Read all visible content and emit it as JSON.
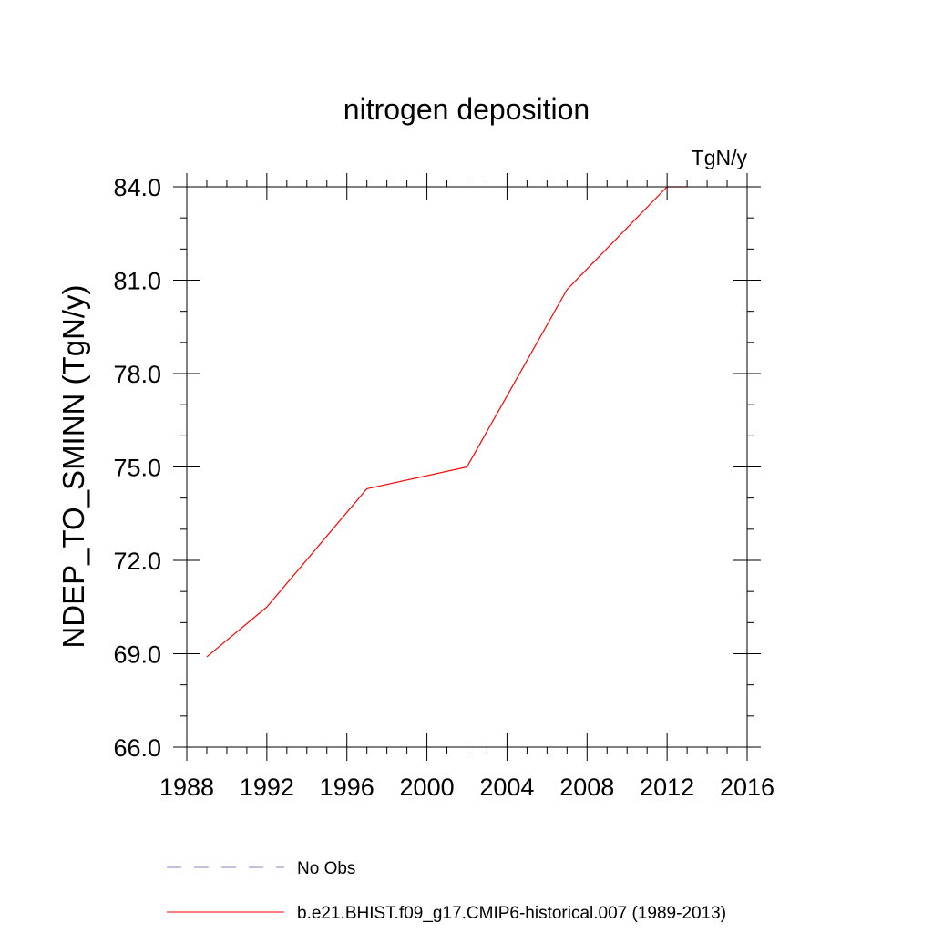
{
  "chart_data": {
    "type": "line",
    "title": "nitrogen deposition",
    "units": "TgN/y",
    "ylabel": "NDEP_TO_SMINN  (TgN/y)",
    "xlabel": "",
    "xlim": [
      1988,
      2016
    ],
    "ylim": [
      66.0,
      84.0
    ],
    "x_ticks": [
      1988,
      1992,
      1996,
      2000,
      2004,
      2008,
      2012,
      2016
    ],
    "x_tick_labels": [
      "1988",
      "1992",
      "1996",
      "2000",
      "2004",
      "2008",
      "2012",
      "2016"
    ],
    "y_ticks": [
      66.0,
      69.0,
      72.0,
      75.0,
      78.0,
      81.0,
      84.0
    ],
    "y_tick_labels": [
      "66.0",
      "69.0",
      "72.0",
      "75.0",
      "78.0",
      "81.0",
      "84.0"
    ],
    "x_minor_step": 1,
    "y_minor_step": 1,
    "grid": false,
    "legend_position": "bottom",
    "series": [
      {
        "name": "b.e21.BHIST.f09_g17.CMIP6-historical.007 (1989-2013)",
        "color": "#ff0000",
        "dash": "solid",
        "x": [
          1989,
          1992,
          1997,
          2002,
          2007,
          2012,
          2013
        ],
        "y": [
          68.9,
          70.5,
          74.3,
          75.0,
          80.7,
          84.0,
          84.0
        ]
      }
    ],
    "legend": [
      {
        "label": "No Obs",
        "color": "#8a80c8",
        "dash": "dashed"
      },
      {
        "label": "b.e21.BHIST.f09_g17.CMIP6-historical.007 (1989-2013)",
        "color": "#ff0000",
        "dash": "solid"
      }
    ]
  }
}
